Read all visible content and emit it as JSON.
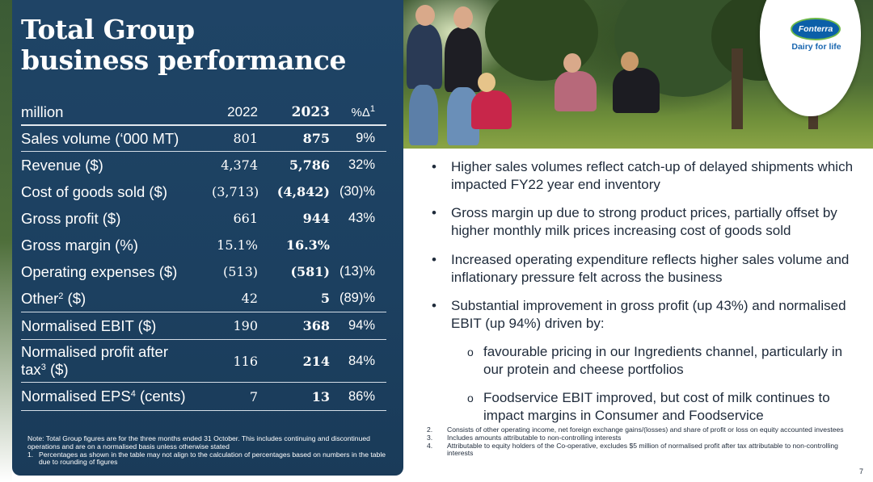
{
  "header": {
    "title_line1": "Total Group",
    "title_line2": "business performance"
  },
  "logo": {
    "name": "Fonterra",
    "tagline": "Dairy for life"
  },
  "table": {
    "columns": [
      "million",
      "2022",
      "2023",
      "%Δ"
    ],
    "pct_footnote": "1",
    "rows": [
      {
        "label": "Sales volume (‘000 MT)",
        "v2022": "801",
        "v2023": "875",
        "pct": "9%"
      },
      {
        "label": "Revenue ($)",
        "v2022": "4,374",
        "v2023": "5,786",
        "pct": "32%"
      },
      {
        "label": "Cost of goods sold ($)",
        "v2022": "(3,713)",
        "v2023": "(4,842)",
        "pct": "(30)%"
      },
      {
        "label": "Gross profit ($)",
        "v2022": "661",
        "v2023": "944",
        "pct": "43%"
      },
      {
        "label": "Gross margin (%)",
        "v2022": "15.1%",
        "v2023": "16.3%",
        "pct": ""
      },
      {
        "label": "Operating expenses ($)",
        "v2022": "(513)",
        "v2023": "(581)",
        "pct": "(13)%"
      },
      {
        "label": "Other",
        "label_sup": "2",
        "label_suffix": " ($)",
        "v2022": "42",
        "v2023": "5",
        "pct": "(89)%"
      },
      {
        "label": "Normalised EBIT ($)",
        "v2022": "190",
        "v2023": "368",
        "pct": "94%"
      },
      {
        "label": "Normalised profit after",
        "label_line2": "tax",
        "label_sup": "3",
        "label_suffix": " ($)",
        "v2022": "116",
        "v2023": "214",
        "pct": "84%"
      },
      {
        "label": "Normalised EPS",
        "label_sup": "4",
        "label_suffix": " (cents)",
        "v2022": "7",
        "v2023": "13",
        "pct": "86%"
      }
    ]
  },
  "notes": {
    "intro": "Note: Total Group figures are for the three months ended 31 October. This includes continuing and discontinued operations and are on a normalised basis unless otherwise stated",
    "item1_num": "1.",
    "item1": "Percentages as shown in the table may not align to the calculation of percentages based on numbers in the table due to rounding of figures"
  },
  "bullets": [
    "Higher sales volumes reflect catch-up of delayed shipments which impacted FY22 year end inventory",
    "Gross margin up due to strong product prices, partially offset by higher monthly milk prices increasing cost of goods sold",
    "Increased operating expenditure reflects higher sales volume and inflationary pressure felt across the business",
    "Substantial improvement in gross profit (up 43%) and normalised EBIT (up 94%) driven by:"
  ],
  "sub_bullets": [
    "favourable pricing in our Ingredients channel, particularly in our protein and cheese portfolios",
    "Foodservice EBIT improved, but cost of milk continues to impact margins in Consumer and Foodservice"
  ],
  "bullet_glyph": "•",
  "sub_bullet_glyph": "o",
  "footnotes": [
    {
      "num": "2.",
      "text": "Consists of other operating income, net foreign exchange gains/(losses) and share of profit or loss on equity accounted investees"
    },
    {
      "num": "3.",
      "text": "Includes amounts attributable to non-controlling interests"
    },
    {
      "num": "4.",
      "text": "Attributable to equity holders of the Co-operative, excludes $5 million of normalised profit after tax attributable to non-controlling interests"
    }
  ],
  "page_number": "7",
  "colors": {
    "panel": "#1f4466",
    "brand_blue": "#0b5fa8",
    "brand_green": "#6fb94a"
  }
}
